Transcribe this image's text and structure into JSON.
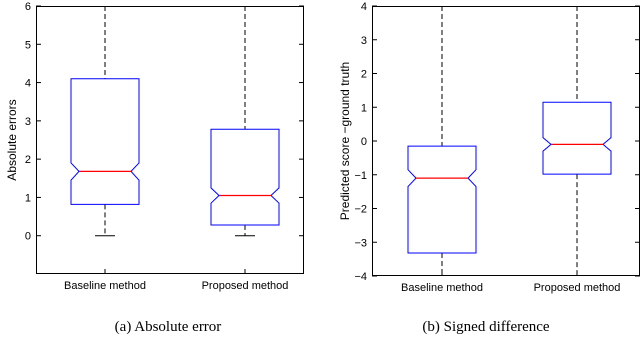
{
  "chart_data": [
    {
      "type": "box",
      "ylabel": "Absolute errors",
      "ylim": [
        -1,
        6
      ],
      "yticks": [
        0,
        1,
        2,
        3,
        4,
        5,
        6
      ],
      "categories": [
        "Baseline method",
        "Proposed method"
      ],
      "boxes": [
        {
          "whisker_low": 0,
          "q1": 0.82,
          "median": 1.68,
          "q3": 4.1,
          "whisker_high": 6,
          "notch_low": 1.45,
          "notch_high": 1.9
        },
        {
          "whisker_low": 0,
          "q1": 0.28,
          "median": 1.05,
          "q3": 2.78,
          "whisker_high": 6,
          "notch_low": 0.85,
          "notch_high": 1.25
        }
      ],
      "caption": "(a) Absolute error"
    },
    {
      "type": "box",
      "ylabel": "Predicted score −ground truth",
      "ylim": [
        -4,
        4
      ],
      "yticks": [
        -4,
        -3,
        -2,
        -1,
        0,
        1,
        2,
        3,
        4
      ],
      "categories": [
        "Baseline method",
        "Proposed method"
      ],
      "boxes": [
        {
          "whisker_low": -4,
          "q1": -3.32,
          "median": -1.1,
          "q3": -0.15,
          "whisker_high": 4,
          "notch_low": -1.35,
          "notch_high": -0.85
        },
        {
          "whisker_low": -4,
          "q1": -0.98,
          "median": -0.1,
          "q3": 1.15,
          "whisker_high": 4,
          "notch_low": -0.3,
          "notch_high": 0.1
        }
      ],
      "caption": "(b) Signed difference"
    }
  ],
  "colors": {
    "box": "#0000ff",
    "median": "#ff0000",
    "whisker": "#000000"
  }
}
